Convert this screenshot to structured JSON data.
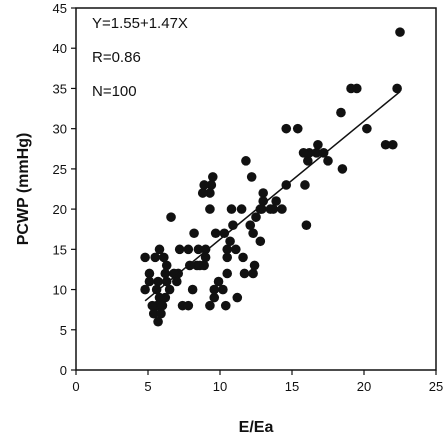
{
  "chart_data": {
    "type": "scatter",
    "xlabel": "E/Ea",
    "ylabel": "PCWP (mmHg)",
    "xlim": [
      0,
      25
    ],
    "ylim": [
      0,
      45
    ],
    "xticks": [
      "0",
      "5",
      "10",
      "15",
      "20",
      "25"
    ],
    "yticks": [
      "0",
      "5",
      "10",
      "15",
      "20",
      "25",
      "30",
      "35",
      "40",
      "45"
    ],
    "grid": false,
    "annotations": [
      "Y=1.55+1.47X",
      "R=0.86",
      "N=100"
    ],
    "regression_line": {
      "x": [
        4.8,
        22.5
      ],
      "y": [
        8.6,
        34.6
      ]
    },
    "marker_color": "#111111",
    "points": [
      [
        22.5,
        42
      ],
      [
        22.3,
        35
      ],
      [
        19.5,
        35
      ],
      [
        19.1,
        35
      ],
      [
        18.4,
        32
      ],
      [
        20.2,
        30
      ],
      [
        21.5,
        28
      ],
      [
        22,
        28
      ],
      [
        18.5,
        25
      ],
      [
        17.2,
        27
      ],
      [
        16.8,
        28
      ],
      [
        16.1,
        26
      ],
      [
        16.2,
        27
      ],
      [
        15.8,
        27
      ],
      [
        15.4,
        30
      ],
      [
        14.6,
        30
      ],
      [
        15.9,
        23
      ],
      [
        16,
        18
      ],
      [
        13,
        22
      ],
      [
        14.3,
        20
      ],
      [
        13.9,
        21
      ],
      [
        13.7,
        20
      ],
      [
        13,
        21
      ],
      [
        12.8,
        20
      ],
      [
        12.5,
        19
      ],
      [
        12.8,
        16
      ],
      [
        12.3,
        17
      ],
      [
        12.1,
        18
      ],
      [
        12.2,
        24
      ],
      [
        11.8,
        26
      ],
      [
        11.5,
        20
      ],
      [
        10.8,
        20
      ],
      [
        10.9,
        18
      ],
      [
        10.5,
        14
      ],
      [
        10.5,
        12
      ],
      [
        10.2,
        10
      ],
      [
        10.3,
        17
      ],
      [
        9.7,
        17
      ],
      [
        9.3,
        20
      ],
      [
        9.5,
        24
      ],
      [
        9.4,
        23
      ],
      [
        9.3,
        22
      ],
      [
        8.8,
        22
      ],
      [
        8.9,
        23
      ],
      [
        8.5,
        15
      ],
      [
        8.2,
        17
      ],
      [
        8.4,
        13
      ],
      [
        8.6,
        13
      ],
      [
        9,
        15
      ],
      [
        9,
        14
      ],
      [
        9.3,
        8
      ],
      [
        9.6,
        9
      ],
      [
        9.6,
        10
      ],
      [
        9.9,
        11
      ],
      [
        10.4,
        8
      ],
      [
        11.2,
        9
      ],
      [
        11.7,
        12
      ],
      [
        11.6,
        14
      ],
      [
        12.3,
        12
      ],
      [
        7.9,
        13
      ],
      [
        7.8,
        15
      ],
      [
        7.2,
        15
      ],
      [
        7.1,
        12
      ],
      [
        7,
        11
      ],
      [
        6.8,
        12
      ],
      [
        6.6,
        19
      ],
      [
        6.5,
        10
      ],
      [
        6.3,
        11
      ],
      [
        6.3,
        13
      ],
      [
        6.1,
        14
      ],
      [
        6.2,
        12
      ],
      [
        5.8,
        15
      ],
      [
        5.7,
        11
      ],
      [
        5.6,
        10
      ],
      [
        5.8,
        9
      ],
      [
        5.6,
        8
      ],
      [
        5.4,
        7
      ],
      [
        5.7,
        6
      ],
      [
        5.9,
        7
      ],
      [
        6.2,
        9
      ],
      [
        5.1,
        12
      ],
      [
        4.8,
        14
      ],
      [
        5.1,
        11
      ],
      [
        4.8,
        10
      ],
      [
        5.3,
        8
      ],
      [
        5.5,
        14
      ],
      [
        6,
        8
      ],
      [
        7.4,
        8
      ],
      [
        7.8,
        8
      ],
      [
        8.9,
        13
      ],
      [
        10.5,
        15
      ],
      [
        10.7,
        16
      ],
      [
        12.4,
        13
      ],
      [
        12.9,
        20
      ],
      [
        13.5,
        20
      ],
      [
        14.6,
        23
      ],
      [
        16.7,
        27
      ],
      [
        17.5,
        26
      ],
      [
        11.1,
        15
      ],
      [
        8.1,
        10
      ]
    ]
  }
}
